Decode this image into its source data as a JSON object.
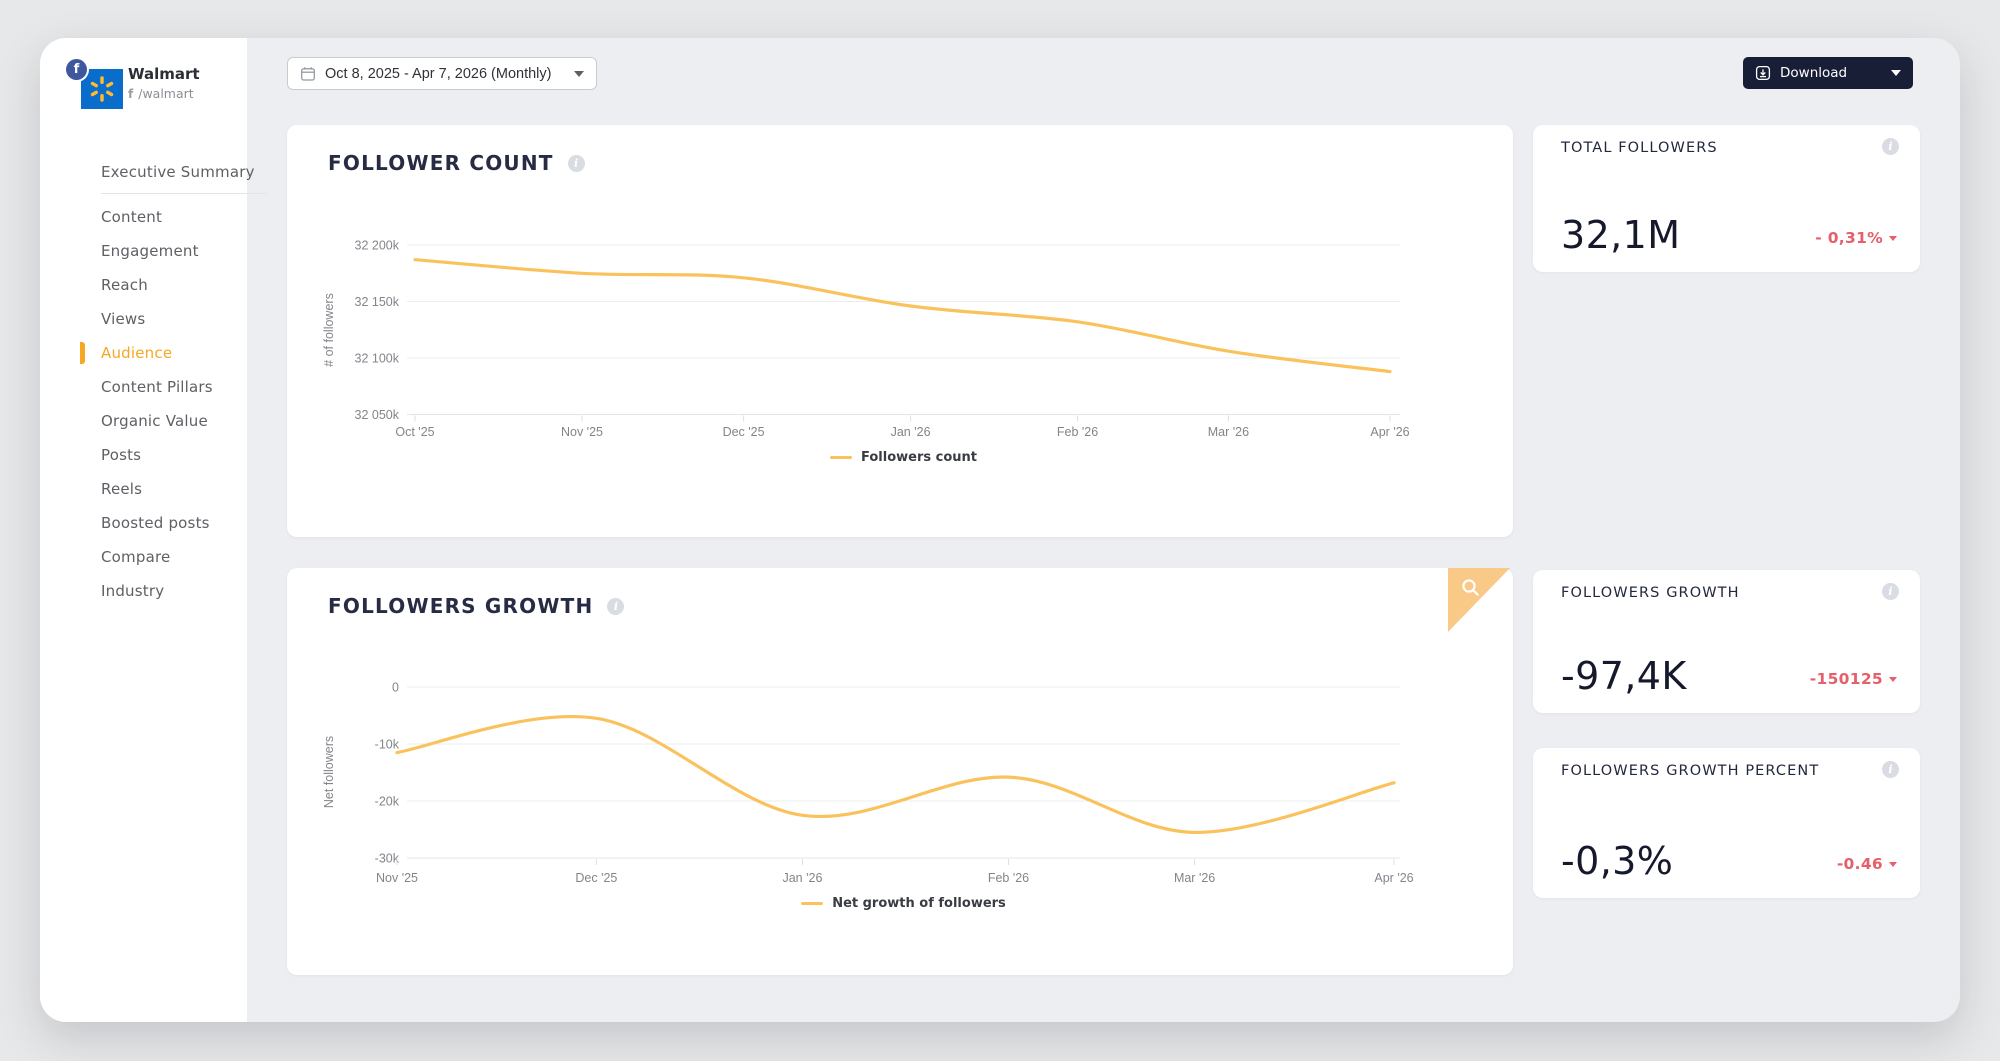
{
  "colors": {
    "accent_orange": "#f6a723",
    "line_yellow": "#fac25c",
    "negative_red": "#e4606b",
    "download_button_navy": "#191e37",
    "walmart_blue": "#0a6dcb",
    "walmart_spark_yellow": "#fdbb30",
    "facebook_badge_blue": "#3f589d"
  },
  "icons": {
    "facebook": "f",
    "info": "i"
  },
  "sidebar": {
    "brand": {
      "name": "Walmart",
      "handle": "/walmart"
    },
    "items": [
      {
        "label": "Executive Summary"
      },
      {
        "label": "Content"
      },
      {
        "label": "Engagement"
      },
      {
        "label": "Reach"
      },
      {
        "label": "Views"
      },
      {
        "label": "Audience"
      },
      {
        "label": "Content Pillars"
      },
      {
        "label": "Organic Value"
      },
      {
        "label": "Posts"
      },
      {
        "label": "Reels"
      },
      {
        "label": "Boosted posts"
      },
      {
        "label": "Compare"
      },
      {
        "label": "Industry"
      }
    ],
    "active_item": "Audience"
  },
  "topbar": {
    "date_range": "Oct 8, 2025 - Apr 7, 2026 (Monthly)",
    "download_label": "Download"
  },
  "stats": [
    {
      "title": "TOTAL FOLLOWERS",
      "value": "32,1M",
      "delta": "- 0,31%"
    },
    {
      "title": "FOLLOWERS GROWTH",
      "value": "-97,4K",
      "delta": "-150125"
    },
    {
      "title": "FOLLOWERS GROWTH PERCENT",
      "value": "-0,3%",
      "delta": "-0.46"
    }
  ],
  "chart_data": [
    {
      "type": "line",
      "title": "FOLLOWER COUNT",
      "ylabel": "# of followers",
      "legend": "Followers count",
      "legend_position": "bottom",
      "grid": true,
      "line_color": "#fac25c",
      "x_categories": [
        "Oct '25",
        "Nov '25",
        "Dec '25",
        "Jan '26",
        "Feb '26",
        "Mar '26",
        "Apr '26"
      ],
      "x_day_offsets": [
        0,
        31,
        61,
        92,
        123,
        151,
        181
      ],
      "x_total_days": 181,
      "values": [
        32187,
        32175,
        32171,
        32146,
        32132,
        32106,
        32088
      ],
      "values_unit": "thousands of followers",
      "ylim": [
        32050,
        32200
      ],
      "yticks": [
        {
          "v": 32200,
          "label": "32 200k"
        },
        {
          "v": 32150,
          "label": "32 150k"
        },
        {
          "v": 32100,
          "label": "32 100k"
        },
        {
          "v": 32050,
          "label": "32 050k"
        }
      ]
    },
    {
      "type": "line",
      "title": "FOLLOWERS GROWTH",
      "ylabel": "Net followers",
      "legend": "Net growth of followers",
      "legend_position": "bottom",
      "grid": true,
      "line_color": "#fac25c",
      "x_categories": [
        "Nov '25",
        "Dec '25",
        "Jan '26",
        "Feb '26",
        "Mar '26",
        "Apr '26"
      ],
      "x_day_offsets": [
        0,
        30,
        61,
        92,
        120,
        150
      ],
      "x_total_days": 150,
      "values": [
        -11.5,
        -5.5,
        -22.5,
        -15.8,
        -25.5,
        -16.8
      ],
      "values_unit": "thousands of net followers",
      "ylim": [
        -30,
        0
      ],
      "yticks": [
        {
          "v": 0,
          "label": "0"
        },
        {
          "v": -10,
          "label": "-10k"
        },
        {
          "v": -20,
          "label": "-20k"
        },
        {
          "v": -30,
          "label": "-30k"
        }
      ]
    }
  ]
}
